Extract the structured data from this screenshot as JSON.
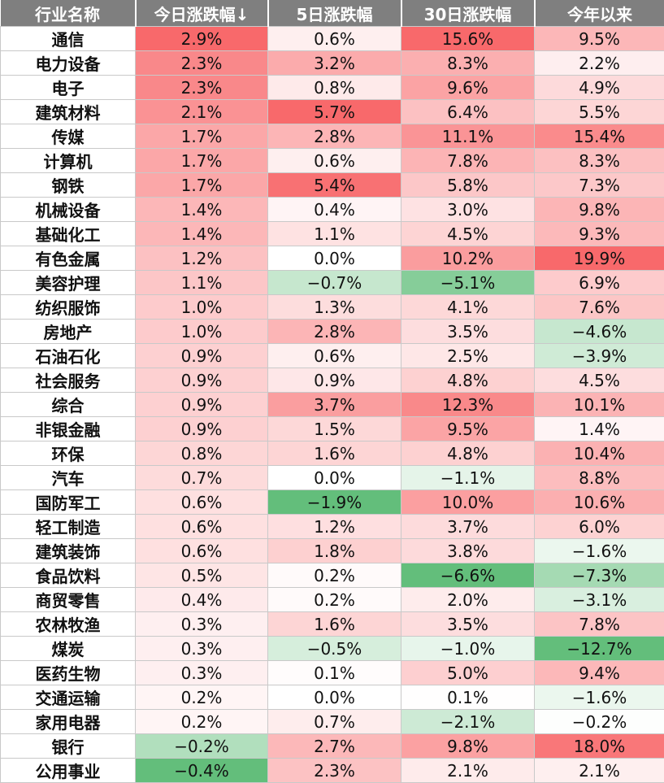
{
  "chart_data": {
    "type": "table",
    "columns": [
      "行业名称",
      "今日涨跌幅↓",
      "5日涨跌幅",
      "30日涨跌幅",
      "今年以来"
    ],
    "rows": [
      {
        "industry": "通信",
        "values": [
          2.9,
          0.6,
          15.6,
          9.5
        ],
        "labels": [
          "2.9%",
          "0.6%",
          "15.6%",
          "9.5%"
        ]
      },
      {
        "industry": "电力设备",
        "values": [
          2.3,
          3.2,
          8.3,
          2.2
        ],
        "labels": [
          "2.3%",
          "3.2%",
          "8.3%",
          "2.2%"
        ]
      },
      {
        "industry": "电子",
        "values": [
          2.3,
          0.8,
          9.6,
          4.9
        ],
        "labels": [
          "2.3%",
          "0.8%",
          "9.6%",
          "4.9%"
        ]
      },
      {
        "industry": "建筑材料",
        "values": [
          2.1,
          5.7,
          6.4,
          5.5
        ],
        "labels": [
          "2.1%",
          "5.7%",
          "6.4%",
          "5.5%"
        ]
      },
      {
        "industry": "传媒",
        "values": [
          1.7,
          2.8,
          11.1,
          15.4
        ],
        "labels": [
          "1.7%",
          "2.8%",
          "11.1%",
          "15.4%"
        ]
      },
      {
        "industry": "计算机",
        "values": [
          1.7,
          0.6,
          7.8,
          8.3
        ],
        "labels": [
          "1.7%",
          "0.6%",
          "7.8%",
          "8.3%"
        ]
      },
      {
        "industry": "钢铁",
        "values": [
          1.7,
          5.4,
          5.8,
          7.3
        ],
        "labels": [
          "1.7%",
          "5.4%",
          "5.8%",
          "7.3%"
        ]
      },
      {
        "industry": "机械设备",
        "values": [
          1.4,
          0.4,
          3.0,
          9.8
        ],
        "labels": [
          "1.4%",
          "0.4%",
          "3.0%",
          "9.8%"
        ]
      },
      {
        "industry": "基础化工",
        "values": [
          1.4,
          1.1,
          4.5,
          9.3
        ],
        "labels": [
          "1.4%",
          "1.1%",
          "4.5%",
          "9.3%"
        ]
      },
      {
        "industry": "有色金属",
        "values": [
          1.2,
          0.0,
          10.2,
          19.9
        ],
        "labels": [
          "1.2%",
          "0.0%",
          "10.2%",
          "19.9%"
        ]
      },
      {
        "industry": "美容护理",
        "values": [
          1.1,
          -0.7,
          -5.1,
          6.9
        ],
        "labels": [
          "1.1%",
          "−0.7%",
          "−5.1%",
          "6.9%"
        ]
      },
      {
        "industry": "纺织服饰",
        "values": [
          1.0,
          1.3,
          4.1,
          7.6
        ],
        "labels": [
          "1.0%",
          "1.3%",
          "4.1%",
          "7.6%"
        ]
      },
      {
        "industry": "房地产",
        "values": [
          1.0,
          2.8,
          3.5,
          -4.6
        ],
        "labels": [
          "1.0%",
          "2.8%",
          "3.5%",
          "−4.6%"
        ]
      },
      {
        "industry": "石油石化",
        "values": [
          0.9,
          0.6,
          2.5,
          -3.9
        ],
        "labels": [
          "0.9%",
          "0.6%",
          "2.5%",
          "−3.9%"
        ]
      },
      {
        "industry": "社会服务",
        "values": [
          0.9,
          0.9,
          4.8,
          4.5
        ],
        "labels": [
          "0.9%",
          "0.9%",
          "4.8%",
          "4.5%"
        ]
      },
      {
        "industry": "综合",
        "values": [
          0.9,
          3.7,
          12.3,
          10.1
        ],
        "labels": [
          "0.9%",
          "3.7%",
          "12.3%",
          "10.1%"
        ]
      },
      {
        "industry": "非银金融",
        "values": [
          0.9,
          1.5,
          9.5,
          1.4
        ],
        "labels": [
          "0.9%",
          "1.5%",
          "9.5%",
          "1.4%"
        ]
      },
      {
        "industry": "环保",
        "values": [
          0.8,
          1.6,
          4.8,
          10.4
        ],
        "labels": [
          "0.8%",
          "1.6%",
          "4.8%",
          "10.4%"
        ]
      },
      {
        "industry": "汽车",
        "values": [
          0.7,
          0.0,
          -1.1,
          8.8
        ],
        "labels": [
          "0.7%",
          "0.0%",
          "−1.1%",
          "8.8%"
        ]
      },
      {
        "industry": "国防军工",
        "values": [
          0.6,
          -1.9,
          10.0,
          10.6
        ],
        "labels": [
          "0.6%",
          "−1.9%",
          "10.0%",
          "10.6%"
        ]
      },
      {
        "industry": "轻工制造",
        "values": [
          0.6,
          1.2,
          3.7,
          6.0
        ],
        "labels": [
          "0.6%",
          "1.2%",
          "3.7%",
          "6.0%"
        ]
      },
      {
        "industry": "建筑装饰",
        "values": [
          0.6,
          1.8,
          3.8,
          -1.6
        ],
        "labels": [
          "0.6%",
          "1.8%",
          "3.8%",
          "−1.6%"
        ]
      },
      {
        "industry": "食品饮料",
        "values": [
          0.5,
          0.2,
          -6.6,
          -7.3
        ],
        "labels": [
          "0.5%",
          "0.2%",
          "−6.6%",
          "−7.3%"
        ]
      },
      {
        "industry": "商贸零售",
        "values": [
          0.4,
          0.2,
          2.0,
          -3.1
        ],
        "labels": [
          "0.4%",
          "0.2%",
          "2.0%",
          "−3.1%"
        ]
      },
      {
        "industry": "农林牧渔",
        "values": [
          0.3,
          1.6,
          3.5,
          7.8
        ],
        "labels": [
          "0.3%",
          "1.6%",
          "3.5%",
          "7.8%"
        ]
      },
      {
        "industry": "煤炭",
        "values": [
          0.3,
          -0.5,
          -1.0,
          -12.7
        ],
        "labels": [
          "0.3%",
          "−0.5%",
          "−1.0%",
          "−12.7%"
        ]
      },
      {
        "industry": "医药生物",
        "values": [
          0.3,
          0.1,
          5.0,
          9.4
        ],
        "labels": [
          "0.3%",
          "0.1%",
          "5.0%",
          "9.4%"
        ]
      },
      {
        "industry": "交通运输",
        "values": [
          0.2,
          0.0,
          0.1,
          -1.6
        ],
        "labels": [
          "0.2%",
          "0.0%",
          "0.1%",
          "−1.6%"
        ]
      },
      {
        "industry": "家用电器",
        "values": [
          0.2,
          0.7,
          -2.1,
          -0.2
        ],
        "labels": [
          "0.2%",
          "0.7%",
          "−2.1%",
          "−0.2%"
        ]
      },
      {
        "industry": "银行",
        "values": [
          -0.2,
          2.7,
          9.8,
          18.0
        ],
        "labels": [
          "−0.2%",
          "2.7%",
          "9.8%",
          "18.0%"
        ]
      },
      {
        "industry": "公用事业",
        "values": [
          -0.4,
          2.3,
          2.1,
          2.1
        ],
        "labels": [
          "−0.4%",
          "2.3%",
          "2.1%",
          "2.1%"
        ]
      }
    ],
    "colors": {
      "header_bg": "#7f7f7f",
      "header_text": "#ffffff",
      "positive_max": "#f8696b",
      "negative_max": "#63be7b",
      "neutral": "#ffffff"
    }
  }
}
